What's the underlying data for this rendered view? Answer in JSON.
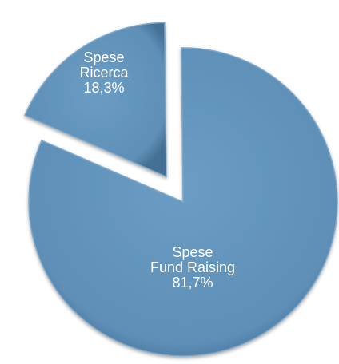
{
  "chart_data": {
    "type": "pie",
    "categories": [
      "Spese\nRicerca",
      "Spese\nFund Raising"
    ],
    "values": [
      18.3,
      81.7
    ],
    "value_labels": [
      "18,3%",
      "81,7%"
    ],
    "color": "#5b8db6"
  }
}
